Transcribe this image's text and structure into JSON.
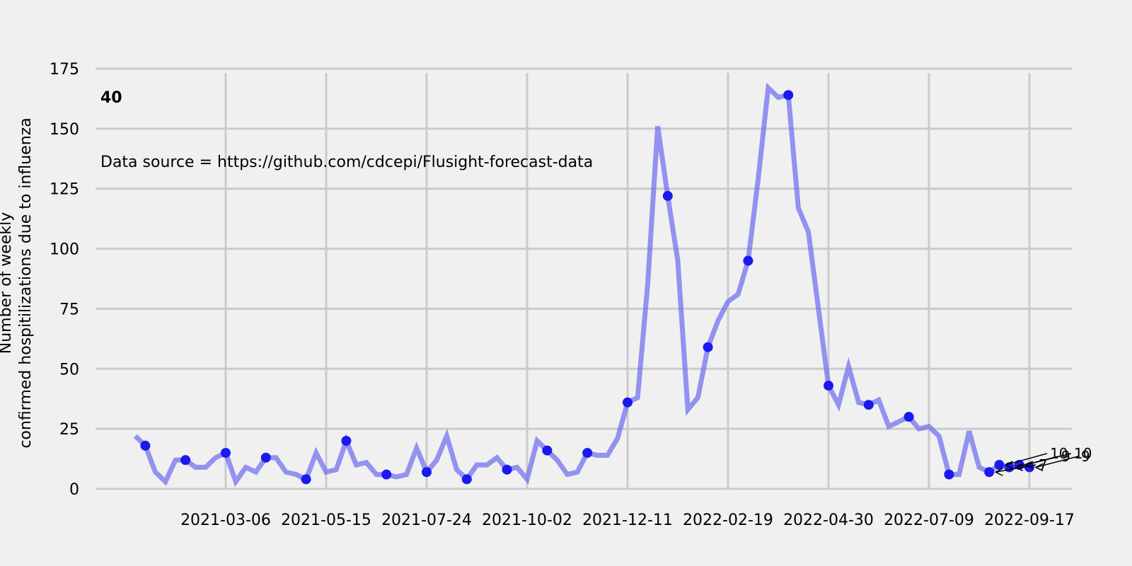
{
  "chart_data": {
    "type": "line",
    "annotation_number": "40",
    "data_source_text": "Data source = https://github.com/cdcepi/Flusight-forecast-data",
    "ylabel_line1": "Number of weekly",
    "ylabel_line2": "confirmed hospitilizations due to influenza",
    "xticks": [
      "2021-03-06",
      "2021-05-15",
      "2021-07-24",
      "2021-10-02",
      "2021-12-11",
      "2022-02-19",
      "2022-04-30",
      "2022-07-09",
      "2022-09-17"
    ],
    "yticks": [
      "0",
      "25",
      "50",
      "75",
      "100",
      "125",
      "150",
      "175"
    ],
    "ylim": [
      0,
      175
    ],
    "grid": true,
    "colors": {
      "line": "#6a6af0",
      "marker": "#1a1aee",
      "grid": "#cbcbcb",
      "background": "#f0f0f0"
    },
    "series": [
      {
        "x": [
          "2021-01-02",
          "2021-01-09",
          "2021-01-16",
          "2021-01-23",
          "2021-01-30",
          "2021-02-06",
          "2021-02-13",
          "2021-02-20",
          "2021-02-27",
          "2021-03-06",
          "2021-03-13",
          "2021-03-20",
          "2021-03-27",
          "2021-04-03",
          "2021-04-10",
          "2021-04-17",
          "2021-04-24",
          "2021-05-01",
          "2021-05-08",
          "2021-05-15",
          "2021-05-22",
          "2021-05-29",
          "2021-06-05",
          "2021-06-12",
          "2021-06-19",
          "2021-06-26",
          "2021-07-03",
          "2021-07-10",
          "2021-07-17",
          "2021-07-24",
          "2021-07-31",
          "2021-08-07",
          "2021-08-14",
          "2021-08-21",
          "2021-08-28",
          "2021-09-04",
          "2021-09-11",
          "2021-09-18",
          "2021-09-25",
          "2021-10-02",
          "2021-10-09",
          "2021-10-16",
          "2021-10-23",
          "2021-10-30",
          "2021-11-06",
          "2021-11-13",
          "2021-11-20",
          "2021-11-27",
          "2021-12-04",
          "2021-12-11",
          "2021-12-18",
          "2021-12-25",
          "2022-01-01",
          "2022-01-08",
          "2022-01-15",
          "2022-01-22",
          "2022-01-29",
          "2022-02-05",
          "2022-02-12",
          "2022-02-19",
          "2022-02-26",
          "2022-03-05",
          "2022-03-12",
          "2022-03-19",
          "2022-03-26",
          "2022-04-02",
          "2022-04-09",
          "2022-04-16",
          "2022-04-23",
          "2022-04-30",
          "2022-05-07",
          "2022-05-14",
          "2022-05-21",
          "2022-05-28",
          "2022-06-04",
          "2022-06-11",
          "2022-06-18",
          "2022-06-25",
          "2022-07-02",
          "2022-07-09",
          "2022-07-16",
          "2022-07-23",
          "2022-07-30",
          "2022-08-06",
          "2022-08-13",
          "2022-08-20",
          "2022-08-27",
          "2022-09-03",
          "2022-09-10",
          "2022-09-17"
        ],
        "y": [
          22,
          18,
          7,
          3,
          12,
          12,
          9,
          9,
          13,
          15,
          3,
          9,
          7,
          13,
          13,
          7,
          6,
          4,
          15,
          7,
          8,
          20,
          10,
          11,
          6,
          6,
          5,
          6,
          17,
          7,
          12,
          22,
          8,
          4,
          10,
          10,
          13,
          8,
          9,
          4,
          20,
          16,
          12,
          6,
          7,
          15,
          14,
          14,
          21,
          36,
          38,
          85,
          151,
          122,
          95,
          33,
          38,
          59,
          70,
          78,
          81,
          95,
          129,
          167,
          163,
          164,
          117,
          107,
          75,
          43,
          35,
          51,
          36,
          35,
          37,
          26,
          28,
          30,
          25,
          26,
          22,
          6,
          6,
          24,
          9,
          7,
          10,
          9,
          10,
          9
        ]
      }
    ],
    "highlighted_points": {
      "x": [
        "2021-01-09",
        "2021-02-06",
        "2021-03-06",
        "2021-04-03",
        "2021-05-01",
        "2021-05-29",
        "2021-06-26",
        "2021-07-24",
        "2021-08-21",
        "2021-09-18",
        "2021-10-16",
        "2021-11-13",
        "2021-12-11",
        "2022-01-08",
        "2022-02-05",
        "2022-03-05",
        "2022-04-02",
        "2022-04-30",
        "2022-05-28",
        "2022-06-25",
        "2022-07-23",
        "2022-08-20",
        "2022-08-27",
        "2022-09-03",
        "2022-09-10",
        "2022-09-17"
      ],
      "y": [
        18,
        12,
        15,
        13,
        4,
        20,
        6,
        7,
        4,
        8,
        16,
        15,
        36,
        122,
        59,
        95,
        164,
        43,
        35,
        30,
        6,
        7,
        10,
        9,
        10,
        9
      ]
    },
    "point_labels": [
      {
        "text": "7",
        "x": "2022-08-20",
        "y": 7
      },
      {
        "text": "10",
        "x": "2022-08-27",
        "y": 10
      },
      {
        "text": "9",
        "x": "2022-09-03",
        "y": 9
      },
      {
        "text": "10",
        "x": "2022-09-10",
        "y": 10
      },
      {
        "text": "9",
        "x": "2022-09-17",
        "y": 9
      }
    ]
  }
}
